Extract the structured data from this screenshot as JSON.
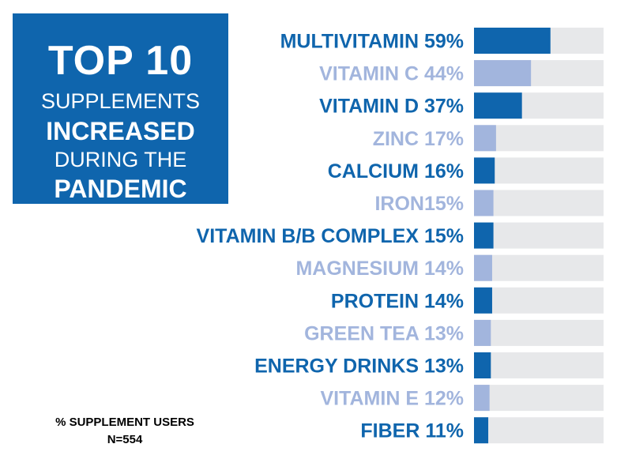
{
  "title": {
    "line1": "TOP 10",
    "line2": "SUPPLEMENTS",
    "line3": "INCREASED",
    "line4": "DURING THE",
    "line5": "PANDEMIC"
  },
  "footnote": {
    "line1": "% SUPPLEMENT USERS",
    "line2": "N=554"
  },
  "colors": {
    "dark": "#0f65ad",
    "light": "#a2b5dd",
    "track": "#e7e8ea",
    "title_bg": "#0f65ad"
  },
  "chart_data": {
    "type": "bar",
    "orientation": "horizontal",
    "xlim": [
      0,
      100
    ],
    "labels": [
      "MULTIVITAMIN 59%",
      "VITAMIN C 44%",
      "VITAMIN D 37%",
      "ZINC 17%",
      "CALCIUM 16%",
      "IRON15%",
      "VITAMIN B/B COMPLEX 15%",
      "MAGNESIUM 14%",
      "PROTEIN 14%",
      "GREEN TEA 13%",
      "ENERGY DRINKS 13%",
      "VITAMIN E 12%",
      "FIBER 11%"
    ],
    "categories": [
      "MULTIVITAMIN",
      "VITAMIN C",
      "VITAMIN D",
      "ZINC",
      "CALCIUM",
      "IRON",
      "VITAMIN B/B COMPLEX",
      "MAGNESIUM",
      "PROTEIN",
      "GREEN TEA",
      "ENERGY DRINKS",
      "VITAMIN E",
      "FIBER"
    ],
    "values": [
      59,
      44,
      37,
      17,
      16,
      15,
      15,
      14,
      14,
      13,
      13,
      12,
      11
    ],
    "shades": [
      "dark",
      "light",
      "dark",
      "light",
      "dark",
      "light",
      "dark",
      "light",
      "dark",
      "light",
      "dark",
      "light",
      "dark"
    ]
  }
}
